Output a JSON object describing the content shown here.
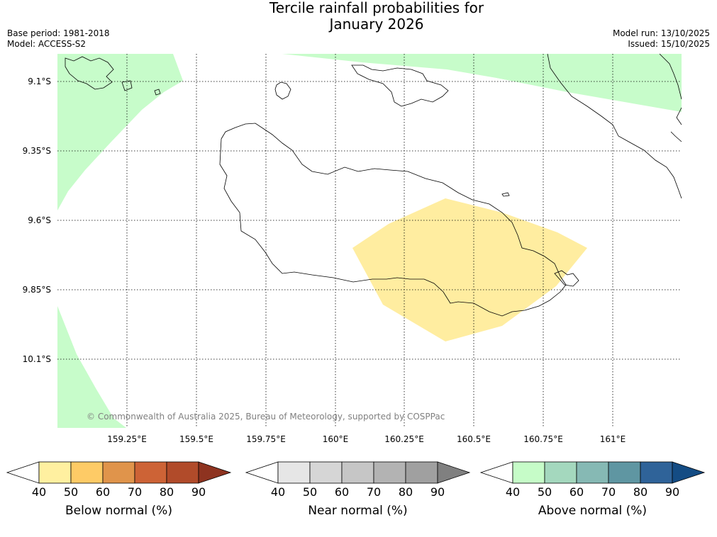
{
  "title_line1": "Tercile rainfall probabilities for",
  "title_line2": "January 2026",
  "base_period": "Base period: 1981-2018",
  "model": "Model: ACCESS-S2",
  "model_run": "Model run: 13/10/2025",
  "issued": "Issued: 15/10/2025",
  "copyright": "© Commonwealth of Australia 2025, Bureau of Meteorology, supported by COSPPac",
  "map": {
    "lat_labels": [
      "9.1°S",
      "9.35°S",
      "9.6°S",
      "9.85°S",
      "10.1°S"
    ],
    "lon_labels": [
      "159.25°E",
      "159.5°E",
      "159.75°E",
      "160°E",
      "160.25°E",
      "160.5°E",
      "160.75°E",
      "161°E"
    ]
  },
  "colorbars": [
    {
      "label": "Below normal (%)",
      "ticks": [
        "40",
        "50",
        "60",
        "70",
        "80",
        "90"
      ],
      "colors": [
        "#fff0a0",
        "#fecb66",
        "#e0944b",
        "#cd6336",
        "#b14b2a",
        "#8e3320"
      ]
    },
    {
      "label": "Near normal (%)",
      "ticks": [
        "40",
        "50",
        "60",
        "70",
        "80",
        "90"
      ],
      "colors": [
        "#e6e6e6",
        "#d6d6d6",
        "#c6c6c6",
        "#b3b3b3",
        "#a0a0a0",
        "#808080"
      ]
    },
    {
      "label": "Above normal (%)",
      "ticks": [
        "40",
        "50",
        "60",
        "70",
        "80",
        "90"
      ],
      "colors": [
        "#c6fcc8",
        "#a4d8be",
        "#86b9b4",
        "#5f96a2",
        "#2f6399",
        "#144c84"
      ]
    }
  ],
  "colors": {
    "below_40_50": "#ffeda0",
    "above_40_50": "#c7fcca",
    "gridline": "#000000"
  }
}
